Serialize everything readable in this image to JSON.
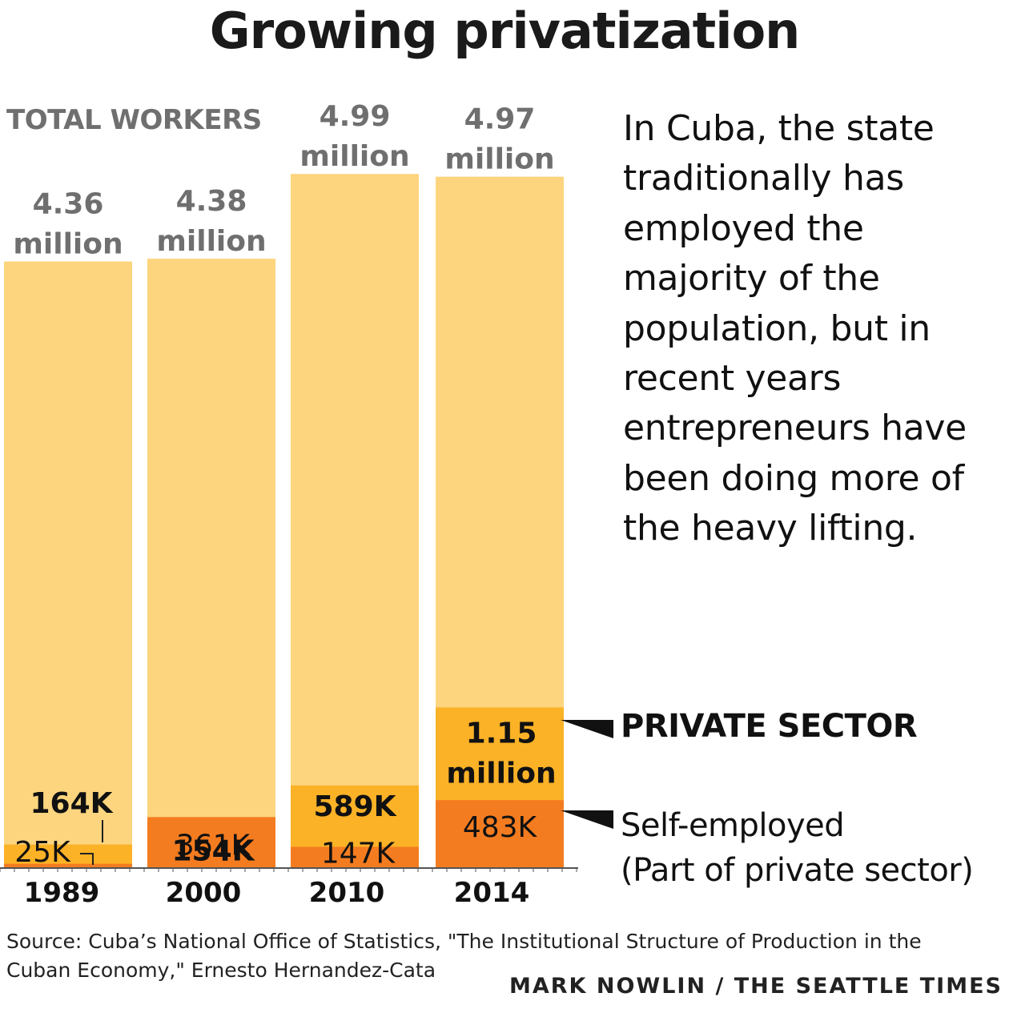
{
  "chart_data": {
    "type": "bar",
    "title": "Growing privatization",
    "subtitle": "TOTAL WORKERS",
    "categories": [
      "1989",
      "2000",
      "2010",
      "2014"
    ],
    "series": [
      {
        "name": "TOTAL WORKERS",
        "values": [
          4.36,
          4.38,
          4.99,
          4.97
        ],
        "labels": [
          [
            "4.36",
            "million"
          ],
          [
            "4.38",
            "million"
          ],
          [
            "4.99",
            "million"
          ],
          [
            "4.97",
            "million"
          ]
        ],
        "color": "#fdd57e"
      },
      {
        "name": "PRIVATE SECTOR",
        "values": [
          0.164,
          0.154,
          0.589,
          1.15
        ],
        "labels": [
          [
            "164K"
          ],
          [
            "154K"
          ],
          [
            "589K"
          ],
          [
            "1.15",
            "million"
          ]
        ],
        "color": "#fbb227"
      },
      {
        "name": "Self-employed",
        "values": [
          0.025,
          0.361,
          0.147,
          0.483
        ],
        "labels": [
          [
            "25K"
          ],
          [
            "361K"
          ],
          [
            "147K"
          ],
          [
            "483K"
          ]
        ],
        "color": "#f47c20"
      }
    ],
    "ylim": [
      0,
      5.0
    ],
    "grid": false,
    "legend": "right"
  },
  "blurb": "In Cuba, the state traditionally has employed the majority of the population, but in recent years entrepreneurs have been doing more of the heavy lifting.",
  "legend": {
    "private_label": "PRIVATE SECTOR",
    "self_label_line1": "Self-employed",
    "self_label_line2": "(Part of private sector)"
  },
  "source": "Source: Cuba’s National Office of  Statistics, \"The Institutional Structure of Production in the Cuban Economy,\" Ernesto Hernandez-Cata",
  "credit": "MARK NOWLIN / THE SEATTLE TIMES",
  "colors": {
    "total": "#fdd57e",
    "private": "#fbb227",
    "self": "#f47c20",
    "axis": "#555555"
  }
}
